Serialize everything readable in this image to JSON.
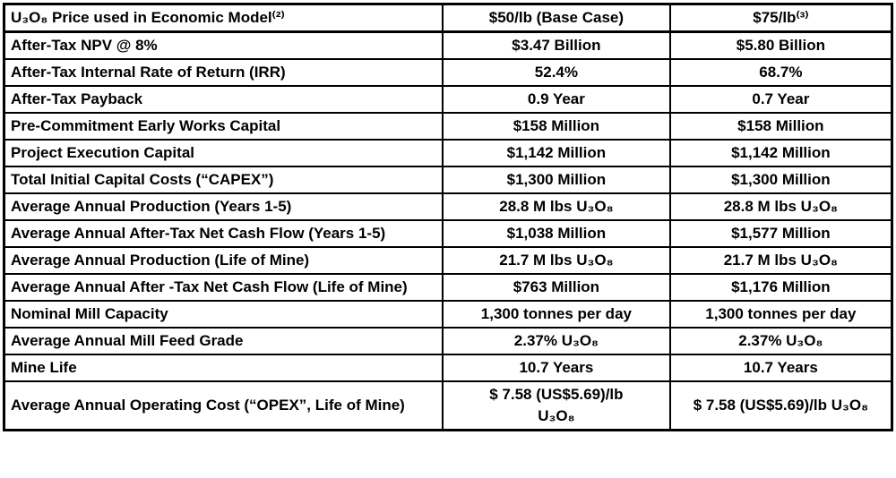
{
  "table": {
    "header": {
      "label": "U₃O₈ Price used in Economic Model⁽²⁾",
      "base_case": "$50/lb (Base Case)",
      "high_case": "$75/lb⁽³⁾"
    },
    "rows": [
      {
        "label": "After-Tax NPV @ 8%",
        "base_case": "$3.47 Billion",
        "high_case": "$5.80 Billion"
      },
      {
        "label": "After-Tax Internal Rate of Return (IRR)",
        "base_case": "52.4%",
        "high_case": "68.7%"
      },
      {
        "label": "After-Tax Payback",
        "base_case": "0.9 Year",
        "high_case": "0.7 Year"
      },
      {
        "label": "Pre-Commitment Early Works Capital",
        "base_case": "$158 Million",
        "high_case": "$158 Million"
      },
      {
        "label": "Project Execution Capital",
        "base_case": "$1,142 Million",
        "high_case": "$1,142 Million"
      },
      {
        "label": "Total Initial Capital Costs (“CAPEX”)",
        "base_case": "$1,300 Million",
        "high_case": "$1,300 Million"
      },
      {
        "label": "Average Annual Production (Years 1-5)",
        "base_case": "28.8 M lbs U₃O₈",
        "high_case": "28.8 M lbs U₃O₈"
      },
      {
        "label": "Average Annual After-Tax Net Cash Flow (Years 1-5)",
        "base_case": "$1,038 Million",
        "high_case": "$1,577 Million"
      },
      {
        "label": "Average Annual Production (Life of Mine)",
        "base_case": "21.7 M lbs U₃O₈",
        "high_case": "21.7 M lbs U₃O₈"
      },
      {
        "label": "Average Annual After -Tax Net Cash Flow (Life of Mine)",
        "base_case": "$763 Million",
        "high_case": "$1,176 Million"
      },
      {
        "label": "Nominal Mill Capacity",
        "base_case": "1,300 tonnes per day",
        "high_case": "1,300 tonnes per day"
      },
      {
        "label": "Average Annual Mill Feed Grade",
        "base_case": "2.37% U₃O₈",
        "high_case": "2.37% U₃O₈"
      },
      {
        "label": "Mine Life",
        "base_case": "10.7 Years",
        "high_case": "10.7 Years"
      },
      {
        "label": "Average Annual Operating Cost (“OPEX”, Life of Mine)",
        "base_case": "$ 7.58 (US$5.69)/lb\nU₃O₈",
        "high_case": "$ 7.58 (US$5.69)/lb U₃O₈"
      }
    ]
  }
}
